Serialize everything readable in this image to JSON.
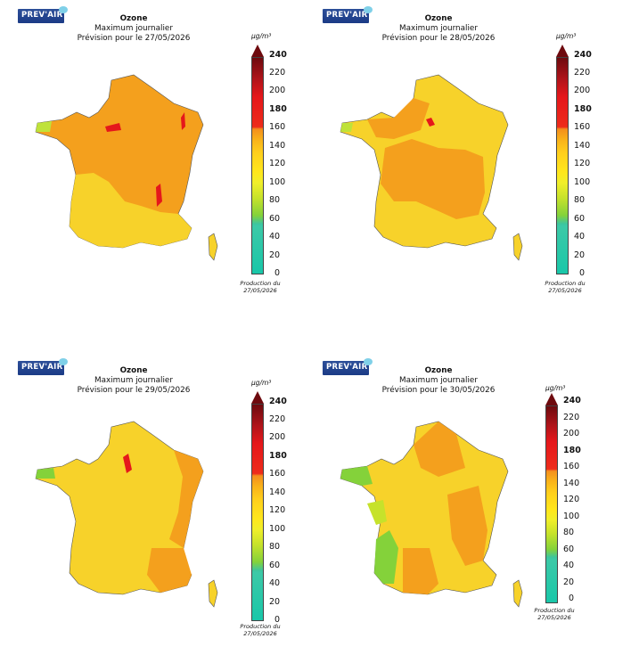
{
  "panels": [
    {
      "logo": "PREV'AIR",
      "title": "Ozone",
      "subtitle": "Maximum journalier",
      "forecast": "Prévision pour le 27/05/2026",
      "unit": "µg/m³",
      "production": [
        "Production du",
        "27/05/2026"
      ],
      "palette": "mostly-orange"
    },
    {
      "logo": "PREV'AIR",
      "title": "Ozone",
      "subtitle": "Maximum journalier",
      "forecast": "Prévision pour le 28/05/2026",
      "unit": "µg/m³",
      "production": [
        "Production du",
        "27/05/2026"
      ],
      "palette": "orange-yellow"
    },
    {
      "logo": "PREV'AIR",
      "title": "Ozone",
      "subtitle": "Maximum journalier",
      "forecast": "Prévision pour le 29/05/2026",
      "unit": "µg/m³",
      "production": [
        "Production du",
        "27/05/2026"
      ],
      "palette": "yellow"
    },
    {
      "logo": "PREV'AIR",
      "title": "Ozone",
      "subtitle": "Maximum journalier",
      "forecast": "Prévision pour le 30/05/2026",
      "unit": "µg/m³",
      "production": [
        "Production du",
        "27/05/2026"
      ],
      "palette": "yellow-green"
    }
  ],
  "scale": {
    "ticks": [
      "240",
      "220",
      "200",
      "180",
      "160",
      "140",
      "120",
      "100",
      "80",
      "60",
      "40",
      "20",
      "0"
    ],
    "threshold": "180",
    "colors": {
      "low": "#19c7a9",
      "mid": "#ffe71c",
      "high": "#f48f1d",
      "alert": "#e5171b",
      "max": "#6e0a0e"
    }
  }
}
